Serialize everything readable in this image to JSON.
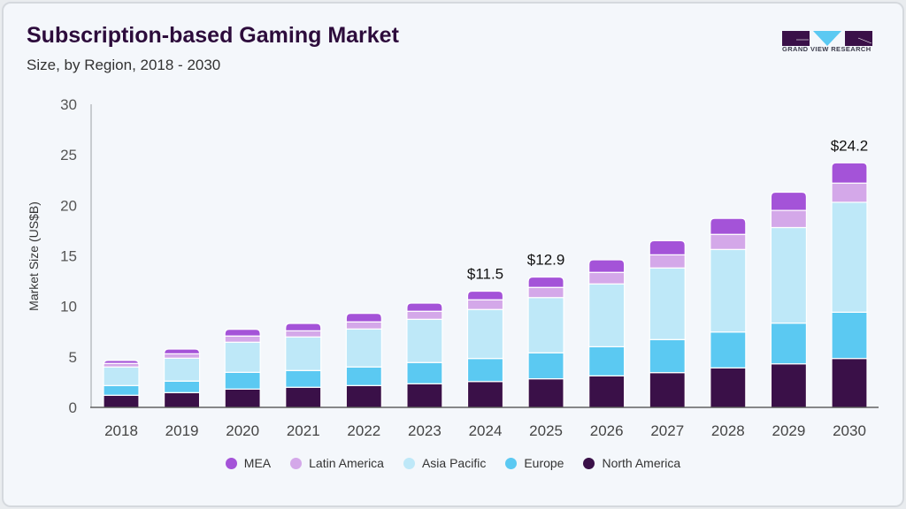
{
  "header": {
    "title": "Subscription-based Gaming Market",
    "subtitle": "Size, by Region, 2018 - 2030"
  },
  "logo": {
    "text": "GRAND VIEW RESEARCH"
  },
  "chart_data": {
    "type": "bar",
    "stacked": true,
    "ylabel": "Market Size (US$B)",
    "xlabel": "",
    "ylim": [
      0,
      30
    ],
    "yticks": [
      0,
      5,
      10,
      15,
      20,
      25,
      30
    ],
    "grid": false,
    "legend_position": "bottom",
    "categories": [
      "2018",
      "2019",
      "2020",
      "2021",
      "2022",
      "2023",
      "2024",
      "2025",
      "2026",
      "2027",
      "2028",
      "2029",
      "2030"
    ],
    "series": [
      {
        "name": "North America",
        "color": "#3a1048",
        "values": [
          1.2,
          1.46,
          1.81,
          1.99,
          2.16,
          2.34,
          2.56,
          2.83,
          3.12,
          3.44,
          3.91,
          4.31,
          4.84
        ]
      },
      {
        "name": "Europe",
        "color": "#5bc9f2",
        "values": [
          0.96,
          1.14,
          1.66,
          1.66,
          1.84,
          2.1,
          2.28,
          2.57,
          2.88,
          3.27,
          3.55,
          4.03,
          4.58
        ]
      },
      {
        "name": "Asia Pacific",
        "color": "#bee8f8",
        "values": [
          1.84,
          2.27,
          2.98,
          3.32,
          3.76,
          4.28,
          4.85,
          5.47,
          6.22,
          7.09,
          8.17,
          9.46,
          10.88
        ]
      },
      {
        "name": "Latin America",
        "color": "#d4a8e9",
        "values": [
          0.35,
          0.44,
          0.61,
          0.61,
          0.7,
          0.79,
          0.96,
          1.0,
          1.14,
          1.3,
          1.49,
          1.7,
          1.9
        ]
      },
      {
        "name": "MEA",
        "color": "#a453d8",
        "values": [
          0.29,
          0.46,
          0.67,
          0.73,
          0.84,
          0.81,
          0.85,
          1.03,
          1.24,
          1.4,
          1.58,
          1.8,
          2.0
        ]
      }
    ],
    "annotations": [
      {
        "category": "2024",
        "label": "$11.5"
      },
      {
        "category": "2025",
        "label": "$12.9"
      },
      {
        "category": "2030",
        "label": "$24.2"
      }
    ],
    "legend_order": [
      "MEA",
      "Latin America",
      "Asia Pacific",
      "Europe",
      "North America"
    ]
  }
}
